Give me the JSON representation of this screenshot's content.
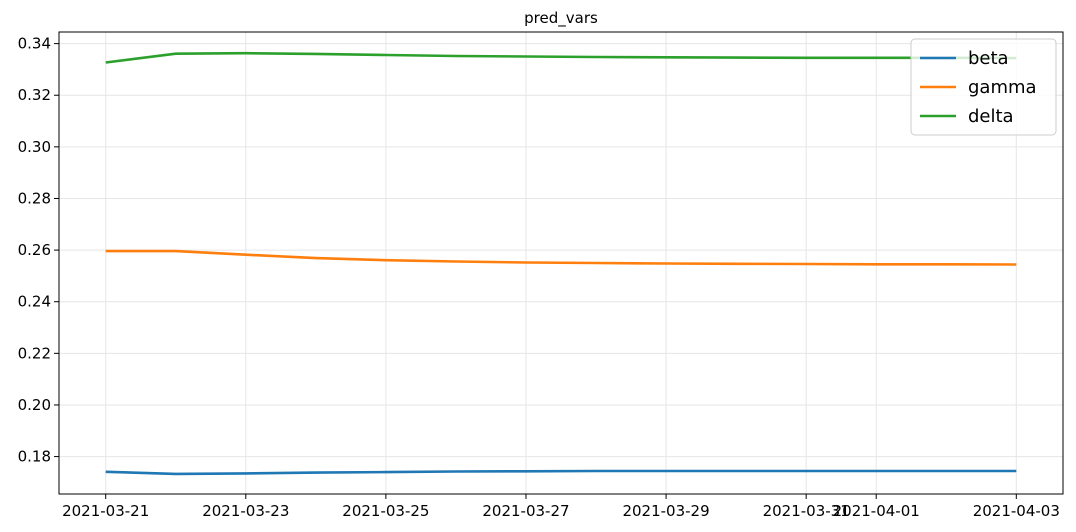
{
  "chart_data": {
    "type": "line",
    "title": "pred_vars",
    "xlabel": "",
    "ylabel": "",
    "x": [
      "2021-03-21",
      "2021-03-22",
      "2021-03-23",
      "2021-03-24",
      "2021-03-25",
      "2021-03-26",
      "2021-03-27",
      "2021-03-28",
      "2021-03-29",
      "2021-03-30",
      "2021-03-31",
      "2021-04-01",
      "2021-04-02",
      "2021-04-03"
    ],
    "xticks": [
      "2021-03-21",
      "2021-03-23",
      "2021-03-25",
      "2021-03-27",
      "2021-03-29",
      "2021-03-31",
      "2021-04-01",
      "2021-04-03"
    ],
    "xlim": [
      "2021-03-20T08:00",
      "2021-04-03T16:00"
    ],
    "ylim": [
      0.1655,
      0.3445
    ],
    "yticks": [
      "0.18",
      "0.20",
      "0.22",
      "0.24",
      "0.26",
      "0.28",
      "0.30",
      "0.32",
      "0.34"
    ],
    "grid": true,
    "legend_position": "top-right",
    "series": [
      {
        "name": "beta",
        "color": "#1f77b4",
        "values": [
          0.1741,
          0.1733,
          0.1735,
          0.1738,
          0.174,
          0.1742,
          0.1743,
          0.1744,
          0.1744,
          0.1744,
          0.1744,
          0.1744,
          0.1744,
          0.1744
        ]
      },
      {
        "name": "gamma",
        "color": "#ff7f0e",
        "values": [
          0.2596,
          0.2596,
          0.2582,
          0.2569,
          0.2561,
          0.2556,
          0.2552,
          0.255,
          0.2548,
          0.2547,
          0.2546,
          0.2545,
          0.2545,
          0.2544
        ]
      },
      {
        "name": "delta",
        "color": "#2ca02c",
        "values": [
          0.3327,
          0.3361,
          0.3363,
          0.336,
          0.3356,
          0.3352,
          0.335,
          0.3348,
          0.3347,
          0.3346,
          0.3345,
          0.3345,
          0.3345,
          0.3344
        ]
      }
    ]
  }
}
